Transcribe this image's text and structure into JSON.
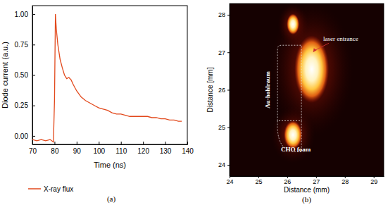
{
  "chart_data": [
    {
      "type": "line",
      "caption": "(a)",
      "x_label": "Time (ns)",
      "y_label": "Diode current (a.u.)",
      "xlim": [
        70,
        140
      ],
      "xticks": [
        70,
        80,
        90,
        100,
        110,
        120,
        130,
        140
      ],
      "ylim": [
        -0.07,
        1.07
      ],
      "yticks": [
        {
          "value": 0,
          "label": "0.00"
        },
        {
          "value": 0.25,
          "label": "0.25"
        },
        {
          "value": 0.5,
          "label": "0.50"
        },
        {
          "value": 0.75,
          "label": "0.75"
        },
        {
          "value": 1,
          "label": "1.00"
        }
      ],
      "legend": "bottom",
      "series": [
        {
          "name": "X-ray flux",
          "color": "#e2491c",
          "x": [
            70,
            72,
            74,
            76,
            78,
            79.5,
            80,
            80.4,
            80.8,
            81.5,
            82.5,
            83.5,
            84.5,
            85.5,
            86.5,
            87.5,
            88.5,
            90,
            92,
            94,
            96,
            98,
            100,
            102,
            104,
            106,
            108,
            110,
            112,
            114,
            116,
            118,
            120,
            122,
            124,
            126,
            128,
            130,
            132,
            134,
            136,
            137.5
          ],
          "values": [
            -0.03,
            -0.04,
            -0.03,
            -0.04,
            -0.03,
            -0.05,
            0.3,
            1.0,
            0.88,
            0.75,
            0.63,
            0.56,
            0.5,
            0.47,
            0.48,
            0.46,
            0.42,
            0.37,
            0.32,
            0.29,
            0.27,
            0.25,
            0.23,
            0.22,
            0.21,
            0.19,
            0.18,
            0.18,
            0.17,
            0.16,
            0.16,
            0.16,
            0.16,
            0.16,
            0.15,
            0.15,
            0.14,
            0.14,
            0.13,
            0.13,
            0.12,
            0.12
          ]
        }
      ]
    },
    {
      "type": "image",
      "caption": "(b)",
      "x_label": "Distance (mm)",
      "y_label": "Distance [mm]",
      "xlim": [
        24,
        29.35
      ],
      "xticks": [
        24,
        25,
        26,
        27,
        28,
        29
      ],
      "ylim": [
        23.7,
        28.3
      ],
      "yticks": [
        24,
        25,
        26,
        27,
        28
      ],
      "spots": [
        {
          "x": 26.2,
          "y": 27.75,
          "rx": 0.22,
          "ry": 0.28
        },
        {
          "x": 26.85,
          "y": 26.55,
          "rx": 0.6,
          "ry": 0.9
        },
        {
          "x": 26.2,
          "y": 24.8,
          "rx": 0.32,
          "ry": 0.38
        }
      ],
      "annotations": [
        {
          "text": "laser entrance",
          "x": 27.25,
          "y": 27.3
        },
        {
          "text": "Au-hohlraum",
          "x": 25.4,
          "y": 26.0
        },
        {
          "text": "CHO foam",
          "x": 26.3,
          "y": 24.35
        }
      ]
    }
  ]
}
